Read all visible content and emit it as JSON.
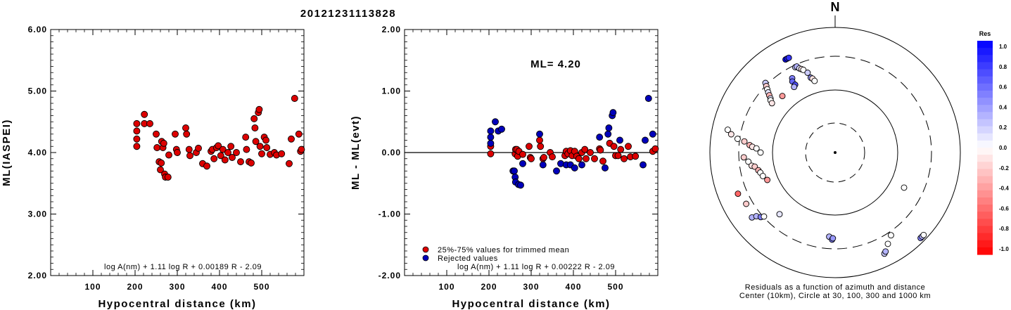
{
  "title": "20121231113828",
  "chart_data": [
    {
      "type": "scatter",
      "ylabel": "ML(IASPEI)",
      "xlabel": "Hypocentral distance (km)",
      "xlim": [
        0,
        600
      ],
      "ylim": [
        2.0,
        6.0
      ],
      "xticks": [
        "100",
        "200",
        "300",
        "400",
        "500"
      ],
      "yticks": [
        "2.00",
        "3.00",
        "4.00",
        "5.00",
        "6.00"
      ],
      "annotation": "log A(nm) + 1.11 log R + 0.00189 R - 2.09",
      "series": [
        {
          "color": "#dd0000",
          "points": [
            [
              204,
              4.47
            ],
            [
              204,
              4.35
            ],
            [
              204,
              4.22
            ],
            [
              204,
              4.1
            ],
            [
              222,
              4.62
            ],
            [
              222,
              4.47
            ],
            [
              235,
              4.47
            ],
            [
              250,
              4.3
            ],
            [
              252,
              4.08
            ],
            [
              257,
              3.85
            ],
            [
              260,
              3.72
            ],
            [
              262,
              3.83
            ],
            [
              263,
              4.18
            ],
            [
              266,
              4.08
            ],
            [
              268,
              4.15
            ],
            [
              270,
              3.65
            ],
            [
              272,
              3.6
            ],
            [
              278,
              3.6
            ],
            [
              280,
              3.96
            ],
            [
              295,
              4.3
            ],
            [
              298,
              4.05
            ],
            [
              300,
              4.0
            ],
            [
              320,
              4.4
            ],
            [
              322,
              4.3
            ],
            [
              328,
              4.05
            ],
            [
              330,
              3.95
            ],
            [
              345,
              4.0
            ],
            [
              350,
              4.07
            ],
            [
              360,
              3.82
            ],
            [
              370,
              3.78
            ],
            [
              380,
              4.02
            ],
            [
              383,
              4.05
            ],
            [
              387,
              3.9
            ],
            [
              393,
              4.08
            ],
            [
              397,
              4.11
            ],
            [
              403,
              3.95
            ],
            [
              408,
              4.05
            ],
            [
              413,
              3.88
            ],
            [
              420,
              4.0
            ],
            [
              427,
              4.1
            ],
            [
              430,
              3.92
            ],
            [
              440,
              4.0
            ],
            [
              450,
              3.85
            ],
            [
              462,
              4.25
            ],
            [
              464,
              4.05
            ],
            [
              470,
              3.85
            ],
            [
              475,
              3.83
            ],
            [
              482,
              4.55
            ],
            [
              484,
              4.4
            ],
            [
              486,
              4.18
            ],
            [
              492,
              4.65
            ],
            [
              494,
              4.7
            ],
            [
              496,
              4.1
            ],
            [
              500,
              3.98
            ],
            [
              506,
              4.25
            ],
            [
              510,
              4.2
            ],
            [
              512,
              4.08
            ],
            [
              520,
              3.97
            ],
            [
              530,
              4.0
            ],
            [
              535,
              3.96
            ],
            [
              547,
              3.98
            ],
            [
              565,
              3.82
            ],
            [
              570,
              4.22
            ],
            [
              578,
              4.88
            ],
            [
              588,
              4.3
            ],
            [
              592,
              4.02
            ],
            [
              594,
              4.05
            ]
          ]
        }
      ]
    },
    {
      "type": "scatter",
      "ylabel": "ML - ML(evt)",
      "xlabel": "Hypocentral distance (km)",
      "xlim": [
        0,
        600
      ],
      "ylim": [
        -2.0,
        2.0
      ],
      "xticks": [
        "100",
        "200",
        "300",
        "400",
        "500"
      ],
      "yticks": [
        "-2.00",
        "-1.00",
        "0.00",
        "1.00",
        "2.00"
      ],
      "hline": 0.0,
      "ml_text": "ML= 4.20",
      "annotation": "log A(nm) + 1.11 log R + 0.00222 R - 2.09",
      "legend": [
        "25%-75% values for trimmed mean",
        "Rejected values"
      ],
      "series": [
        {
          "name": "25%-75% values for trimmed mean",
          "color": "#dd0000",
          "points": [
            [
              204,
              0.1
            ],
            [
              204,
              -0.02
            ],
            [
              262,
              -0.02
            ],
            [
              263,
              0.05
            ],
            [
              266,
              0.05
            ],
            [
              268,
              -0.06
            ],
            [
              271,
              0.02
            ],
            [
              280,
              -0.03
            ],
            [
              295,
              0.1
            ],
            [
              298,
              -0.08
            ],
            [
              300,
              -0.1
            ],
            [
              320,
              0.2
            ],
            [
              322,
              0.1
            ],
            [
              328,
              -0.1
            ],
            [
              330,
              -0.08
            ],
            [
              345,
              0.0
            ],
            [
              350,
              -0.07
            ],
            [
              380,
              -0.05
            ],
            [
              383,
              0.02
            ],
            [
              387,
              -0.02
            ],
            [
              393,
              0.03
            ],
            [
              397,
              -0.05
            ],
            [
              403,
              0.02
            ],
            [
              408,
              -0.06
            ],
            [
              413,
              -0.1
            ],
            [
              420,
              0.0
            ],
            [
              427,
              0.05
            ],
            [
              430,
              -0.1
            ],
            [
              440,
              0.0
            ],
            [
              450,
              -0.1
            ],
            [
              462,
              0.06
            ],
            [
              464,
              0.04
            ],
            [
              470,
              -0.14
            ],
            [
              486,
              0.15
            ],
            [
              496,
              0.1
            ],
            [
              500,
              -0.05
            ],
            [
              506,
              -0.05
            ],
            [
              512,
              0.05
            ],
            [
              520,
              -0.1
            ],
            [
              530,
              0.1
            ],
            [
              535,
              -0.07
            ],
            [
              547,
              -0.06
            ],
            [
              588,
              0.02
            ],
            [
              594,
              0.06
            ]
          ]
        },
        {
          "name": "Rejected values",
          "color": "#0000bb",
          "points": [
            [
              204,
              0.35
            ],
            [
              204,
              0.25
            ],
            [
              204,
              0.15
            ],
            [
              215,
              0.5
            ],
            [
              222,
              0.35
            ],
            [
              230,
              0.38
            ],
            [
              257,
              -0.3
            ],
            [
              260,
              -0.3
            ],
            [
              262,
              -0.4
            ],
            [
              263,
              -0.48
            ],
            [
              270,
              -0.52
            ],
            [
              275,
              -0.53
            ],
            [
              280,
              -0.18
            ],
            [
              320,
              0.3
            ],
            [
              328,
              -0.2
            ],
            [
              360,
              -0.3
            ],
            [
              370,
              -0.18
            ],
            [
              383,
              -0.2
            ],
            [
              393,
              -0.2
            ],
            [
              403,
              -0.25
            ],
            [
              420,
              -0.2
            ],
            [
              462,
              0.25
            ],
            [
              475,
              -0.25
            ],
            [
              482,
              0.3
            ],
            [
              484,
              0.4
            ],
            [
              492,
              0.6
            ],
            [
              494,
              0.65
            ],
            [
              510,
              0.2
            ],
            [
              565,
              -0.2
            ],
            [
              570,
              0.2
            ],
            [
              578,
              0.88
            ],
            [
              588,
              0.3
            ]
          ]
        }
      ]
    },
    {
      "type": "polar_scatter",
      "north_label": "N",
      "caption": [
        "Residuals as a function of azimuth and distance",
        "Center (10km), Circle at 30, 100, 300 and 1000 km"
      ],
      "colorbar": {
        "title": "Res",
        "ticks": [
          "1.0",
          "0.8",
          "0.6",
          "0.4",
          "0.2",
          "0.0",
          "-0.2",
          "-0.4",
          "-0.6",
          "-0.8",
          "-1.0"
        ]
      },
      "points": [
        [
          -28,
          1.0
        ],
        [
          -27,
          0.9
        ],
        [
          -26,
          0.8
        ],
        [
          -25,
          0.2
        ],
        [
          -24,
          0.3
        ],
        [
          -23,
          0.1
        ],
        [
          -22,
          -0.1
        ],
        [
          -21,
          0.0
        ],
        [
          -19,
          0.2
        ],
        [
          -18,
          0.4
        ],
        [
          -17,
          -0.1
        ],
        [
          -16,
          0.0
        ],
        [
          -30,
          0.5
        ],
        [
          -31,
          0.6
        ],
        [
          -30.5,
          0.7
        ],
        [
          -32,
          0.3
        ],
        [
          -45,
          0.2
        ],
        [
          -46,
          -0.2
        ],
        [
          -47,
          0.0
        ],
        [
          -48,
          0.1
        ],
        [
          -49,
          -0.3
        ],
        [
          -50,
          0.1
        ],
        [
          -51,
          0.0
        ],
        [
          -52,
          -0.1
        ],
        [
          -43,
          -0.4
        ],
        [
          -78,
          0.0
        ],
        [
          -80,
          -0.1
        ],
        [
          -82,
          0.0
        ],
        [
          -83,
          -0.2
        ],
        [
          -85,
          -0.3
        ],
        [
          -86,
          -0.1
        ],
        [
          -87,
          0.0
        ],
        [
          -90,
          0.0
        ],
        [
          -93,
          -0.2
        ],
        [
          -96,
          0.0
        ],
        [
          -99,
          -0.1
        ],
        [
          -100,
          -0.2
        ],
        [
          -103,
          -0.3
        ],
        [
          -105,
          0.0
        ],
        [
          -108,
          0.0
        ],
        [
          -112,
          -0.4
        ],
        [
          -113,
          -0.6
        ],
        [
          -120,
          -0.2
        ],
        [
          -128,
          0.3
        ],
        [
          -129,
          0.3
        ],
        [
          -131,
          0.5
        ],
        [
          -132,
          0.0
        ],
        [
          -138,
          0.1
        ],
        [
          -176,
          0.3
        ],
        [
          -178,
          0.5
        ],
        [
          -178.5,
          0.4
        ],
        [
          -206,
          0.2
        ],
        [
          -207,
          0.3
        ],
        [
          -210,
          0.0
        ],
        [
          -214,
          0.0
        ],
        [
          -243,
          0.0
        ],
        [
          -225,
          0.5
        ],
        [
          -226,
          0.3
        ],
        [
          -227,
          0.0
        ]
      ]
    }
  ]
}
